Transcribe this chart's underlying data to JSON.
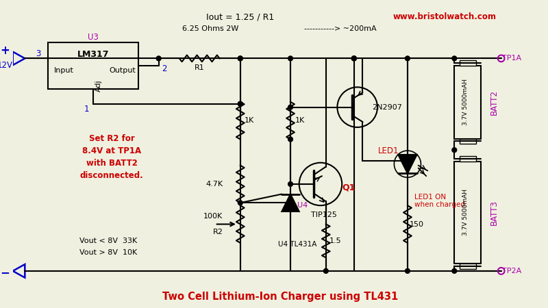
{
  "title": "Two Cell Lithium-Ion Charger using TL431",
  "title_color": "#cc0000",
  "website": "www.bristolwatch.com",
  "website_color": "#cc0000",
  "bg_color": "#f0f0e0",
  "line_color": "#000000",
  "blue_color": "#0000cc",
  "magenta_color": "#aa00aa",
  "red_color": "#cc0000",
  "iout_text": "Iout = 1.25 / R1",
  "r1_val_text": "6.25 Ohms 2W",
  "current_text": "-----------> ~200mA",
  "set_r2_text": "Set R2 for\n8.4V at TP1A\nwith BATT2\ndisconnected.",
  "vout_low": "Vout < 8V  33K",
  "vout_high": "Vout > 8V  10K",
  "tl431a_text": "U4 TL431A"
}
